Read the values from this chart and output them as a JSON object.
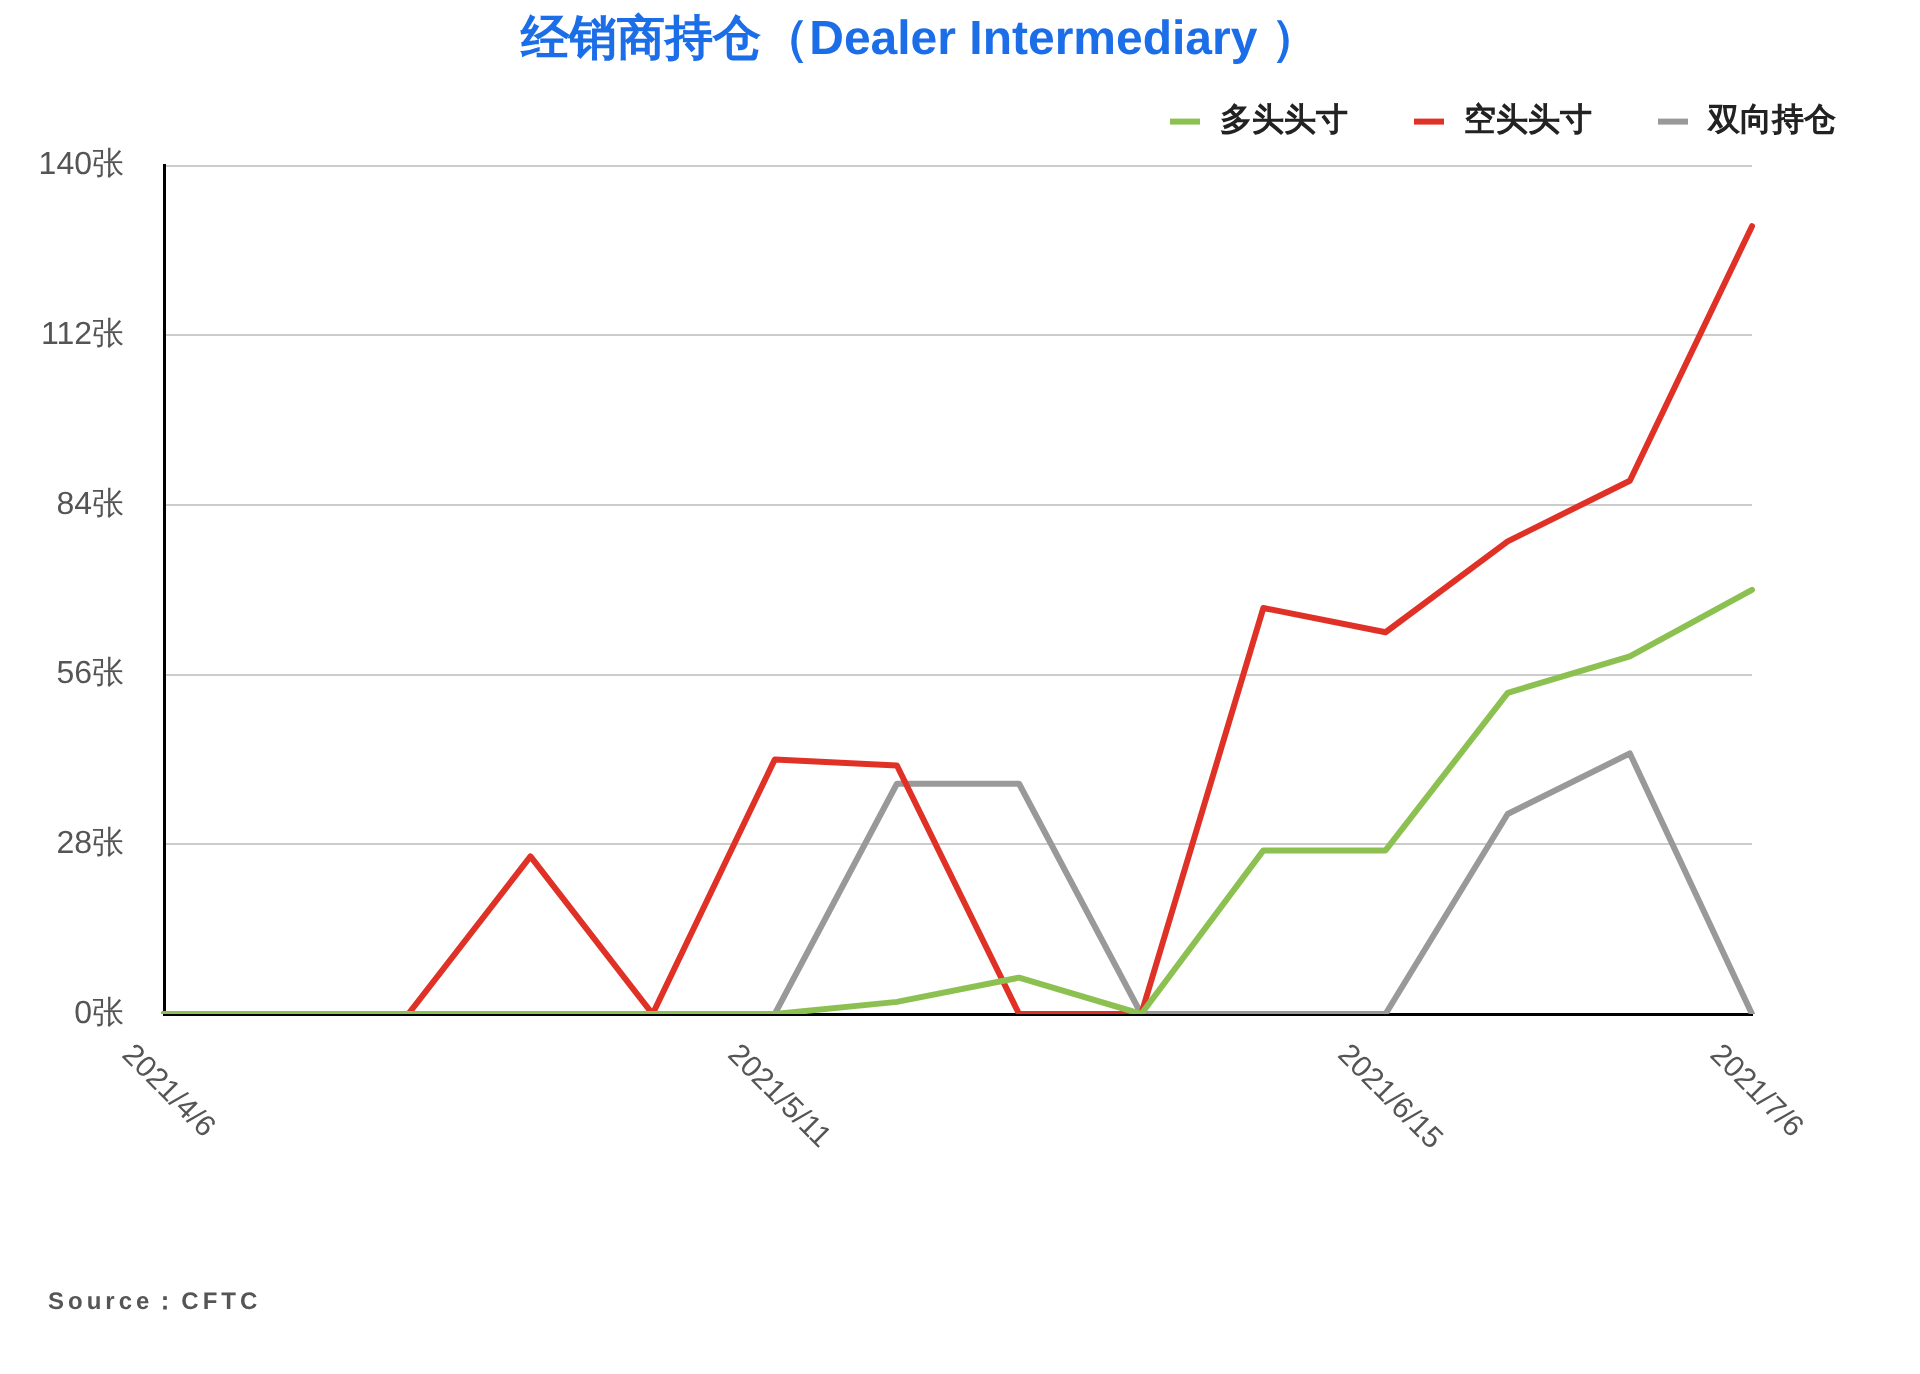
{
  "chart_data": {
    "type": "line",
    "title": "经销商持仓（Dealer Intermediary ）",
    "categories": [
      "2021/4/6",
      null,
      null,
      null,
      null,
      "2021/5/11",
      null,
      null,
      null,
      null,
      "2021/6/15",
      null,
      null,
      "2021/7/6"
    ],
    "series": [
      {
        "name": "多头头寸",
        "color": "#8cc152",
        "values": [
          0,
          0,
          0,
          0,
          0,
          0,
          2,
          6,
          0,
          27,
          27,
          53,
          59,
          70
        ]
      },
      {
        "name": "空头头寸",
        "color": "#e03127",
        "values": [
          0,
          0,
          0,
          26,
          0,
          42,
          41,
          0,
          0,
          67,
          63,
          78,
          88,
          130
        ]
      },
      {
        "name": "双向持仓",
        "color": "#999999",
        "values": [
          0,
          0,
          0,
          0,
          0,
          0,
          38,
          38,
          0,
          0,
          0,
          33,
          43,
          0
        ]
      }
    ],
    "ylim": [
      0,
      140
    ],
    "yticks": [
      {
        "value": 0,
        "label": "0张"
      },
      {
        "value": 28,
        "label": "28张"
      },
      {
        "value": 56,
        "label": "56张"
      },
      {
        "value": 84,
        "label": "84张"
      },
      {
        "value": 112,
        "label": "112张"
      },
      {
        "value": 140,
        "label": "140张"
      }
    ],
    "grid": "y",
    "legend": "top right",
    "marker": "none",
    "line_style": "solid",
    "annotations": [
      "Source：CFTC"
    ]
  }
}
